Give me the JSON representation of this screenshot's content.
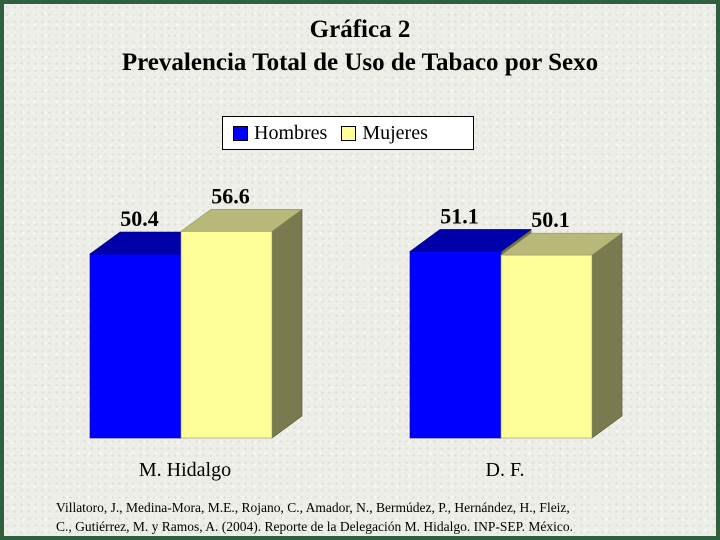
{
  "chart_data": {
    "type": "bar",
    "title": "Gráfica 2",
    "subtitle": "Prevalencia Total de Uso de Tabaco por Sexo",
    "categories": [
      "M. Hidalgo",
      "D. F."
    ],
    "series": [
      {
        "name": "Hombres",
        "values": [
          50.4,
          51.1
        ],
        "color": "#0000ff"
      },
      {
        "name": "Mujeres",
        "values": [
          56.6,
          50.1
        ],
        "color": "#ffff99"
      }
    ],
    "data_labels": [
      [
        "50.4",
        "56.6"
      ],
      [
        "51.1",
        "50.1"
      ]
    ],
    "ylim": [
      0,
      70
    ],
    "legend_position": "top-center",
    "grid": false,
    "three_d": true
  },
  "source": {
    "line1": "Villatoro, J., Medina-Mora, M.E., Rojano, C., Amador, N., Bermúdez, P., Hernández, H., Fleiz,",
    "line2": "C., Gutiérrez, M. y Ramos, A. (2004). Reporte de la Delegación M. Hidalgo. INP-SEP. México."
  },
  "colors": {
    "frame_border": "#2f5f3c",
    "background": "#eeeee8"
  }
}
